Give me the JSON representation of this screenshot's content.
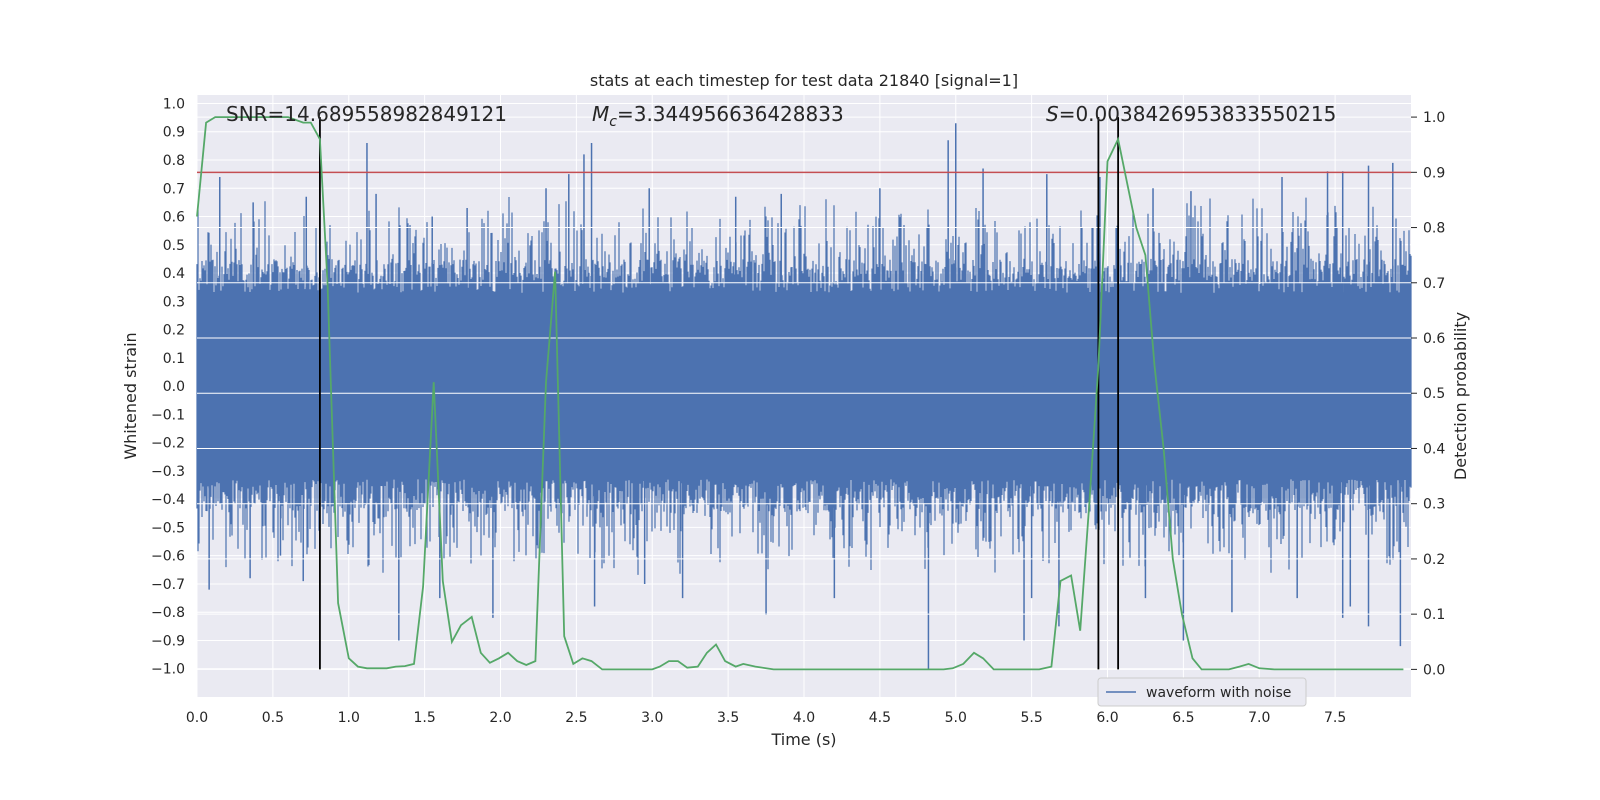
{
  "chart_data": {
    "type": "line",
    "title": "stats at each timestep for test data 21840 [signal=1]",
    "xlabel": "Time (s)",
    "ylabel_left": "Whitened strain",
    "ylabel_right": "Detection probability",
    "xlim": [
      0.0,
      8.0
    ],
    "ylim_left": [
      -1.1,
      1.03
    ],
    "ylim_right": [
      -0.05,
      1.04
    ],
    "x_ticks": [
      "0.0",
      "0.5",
      "1.0",
      "1.5",
      "2.0",
      "2.5",
      "3.0",
      "3.5",
      "4.0",
      "4.5",
      "5.0",
      "5.5",
      "6.0",
      "6.5",
      "7.0",
      "7.5"
    ],
    "y_left_ticks": [
      "1.0",
      "0.9",
      "0.8",
      "0.7",
      "0.6",
      "0.5",
      "0.4",
      "0.3",
      "0.2",
      "0.1",
      "0.0",
      "-0.1",
      "-0.2",
      "-0.3",
      "-0.4",
      "-0.5",
      "-0.6",
      "-0.7",
      "-0.8",
      "-0.9",
      "-1.0"
    ],
    "y_right_ticks": [
      "1.0",
      "0.9",
      "0.8",
      "0.7",
      "0.6",
      "0.5",
      "0.4",
      "0.3",
      "0.2",
      "0.1",
      "0.0"
    ],
    "grid": true,
    "legend": {
      "placement": "bottom-right",
      "entries": [
        "waveform with noise"
      ]
    },
    "annotations": {
      "snr": "SNR=14.689558982849121",
      "mc": "=3.344956636428833",
      "mc_symbol": "M",
      "mc_sub": "c",
      "s": "=0.0038426953833550215",
      "s_symbol": "S"
    },
    "threshold_right": 0.9,
    "vertical_lines_s": [
      0.81,
      5.94,
      6.07
    ],
    "waveform": {
      "name": "waveform with noise",
      "band_inner": 0.33,
      "band_outer": 0.45,
      "peaks_pos": [
        [
          0.15,
          0.74
        ],
        [
          0.37,
          0.65
        ],
        [
          0.72,
          0.67
        ],
        [
          1.12,
          0.86
        ],
        [
          1.18,
          0.68
        ],
        [
          1.55,
          0.6
        ],
        [
          1.78,
          0.63
        ],
        [
          2.3,
          0.7
        ],
        [
          2.45,
          0.75
        ],
        [
          2.55,
          0.82
        ],
        [
          2.6,
          0.86
        ],
        [
          2.98,
          0.7
        ],
        [
          3.55,
          0.67
        ],
        [
          3.85,
          0.68
        ],
        [
          4.5,
          0.7
        ],
        [
          4.95,
          0.87
        ],
        [
          5.0,
          0.93
        ],
        [
          5.18,
          0.77
        ],
        [
          5.6,
          0.75
        ],
        [
          5.95,
          0.74
        ],
        [
          6.3,
          0.7
        ],
        [
          6.55,
          0.69
        ],
        [
          7.15,
          0.74
        ],
        [
          7.45,
          0.76
        ],
        [
          7.55,
          0.76
        ],
        [
          7.72,
          0.78
        ],
        [
          7.88,
          0.79
        ]
      ],
      "peaks_neg": [
        [
          0.08,
          -0.72
        ],
        [
          0.35,
          -0.68
        ],
        [
          0.55,
          -0.6
        ],
        [
          0.7,
          -0.69
        ],
        [
          1.33,
          -0.9
        ],
        [
          1.6,
          -0.75
        ],
        [
          1.95,
          -0.82
        ],
        [
          2.62,
          -0.78
        ],
        [
          2.95,
          -0.7
        ],
        [
          3.2,
          -0.75
        ],
        [
          3.75,
          -0.81
        ],
        [
          4.2,
          -0.75
        ],
        [
          4.82,
          -1.0
        ],
        [
          5.45,
          -0.9
        ],
        [
          5.5,
          -0.75
        ],
        [
          5.68,
          -0.85
        ],
        [
          6.25,
          -0.75
        ],
        [
          6.5,
          -0.9
        ],
        [
          6.82,
          -0.8
        ],
        [
          7.25,
          -0.75
        ],
        [
          7.55,
          -0.82
        ],
        [
          7.6,
          -0.78
        ],
        [
          7.72,
          -0.85
        ],
        [
          7.93,
          -0.92
        ]
      ]
    },
    "probability": {
      "color": "#55a868",
      "x": [
        0.0,
        0.06,
        0.12,
        0.2,
        0.3,
        0.4,
        0.5,
        0.6,
        0.7,
        0.75,
        0.81,
        0.86,
        0.93,
        1.0,
        1.06,
        1.12,
        1.19,
        1.25,
        1.31,
        1.37,
        1.43,
        1.49,
        1.56,
        1.62,
        1.68,
        1.74,
        1.81,
        1.87,
        1.93,
        1.99,
        2.05,
        2.11,
        2.17,
        2.23,
        2.3,
        2.36,
        2.42,
        2.48,
        2.54,
        2.6,
        2.67,
        2.73,
        2.8,
        2.9,
        3.0,
        3.05,
        3.11,
        3.17,
        3.23,
        3.3,
        3.36,
        3.42,
        3.48,
        3.55,
        3.6,
        3.68,
        3.8,
        3.9,
        4.0,
        4.2,
        4.4,
        4.6,
        4.8,
        4.92,
        4.98,
        5.05,
        5.12,
        5.18,
        5.25,
        5.3,
        5.4,
        5.5,
        5.55,
        5.63,
        5.69,
        5.76,
        5.82,
        5.88,
        5.94,
        6.0,
        6.07,
        6.13,
        6.19,
        6.25,
        6.31,
        6.37,
        6.43,
        6.49,
        6.56,
        6.62,
        6.7,
        6.8,
        6.87,
        6.93,
        7.0,
        7.1,
        7.2,
        7.3,
        7.45,
        7.6,
        7.75,
        7.95
      ],
      "y": [
        0.82,
        0.99,
        1.0,
        1.0,
        1.0,
        1.0,
        1.0,
        1.0,
        0.99,
        0.99,
        0.96,
        0.7,
        0.12,
        0.02,
        0.005,
        0.002,
        0.002,
        0.002,
        0.005,
        0.006,
        0.01,
        0.15,
        0.52,
        0.16,
        0.05,
        0.08,
        0.095,
        0.03,
        0.012,
        0.02,
        0.03,
        0.015,
        0.008,
        0.015,
        0.52,
        0.72,
        0.06,
        0.01,
        0.02,
        0.015,
        0.0,
        0.0,
        0.0,
        0.0,
        0.0,
        0.005,
        0.015,
        0.015,
        0.003,
        0.005,
        0.03,
        0.045,
        0.015,
        0.005,
        0.01,
        0.005,
        0.0,
        0.0,
        0.0,
        0.0,
        0.0,
        0.0,
        0.0,
        0.0,
        0.002,
        0.01,
        0.03,
        0.02,
        0.0,
        0.0,
        0.0,
        0.0,
        0.0,
        0.005,
        0.16,
        0.17,
        0.07,
        0.3,
        0.55,
        0.92,
        0.96,
        0.88,
        0.8,
        0.75,
        0.55,
        0.4,
        0.2,
        0.1,
        0.02,
        0.0,
        0.0,
        0.0,
        0.005,
        0.01,
        0.002,
        0.0,
        0.0,
        0.0,
        0.0,
        0.0,
        0.0,
        0.0
      ]
    }
  }
}
